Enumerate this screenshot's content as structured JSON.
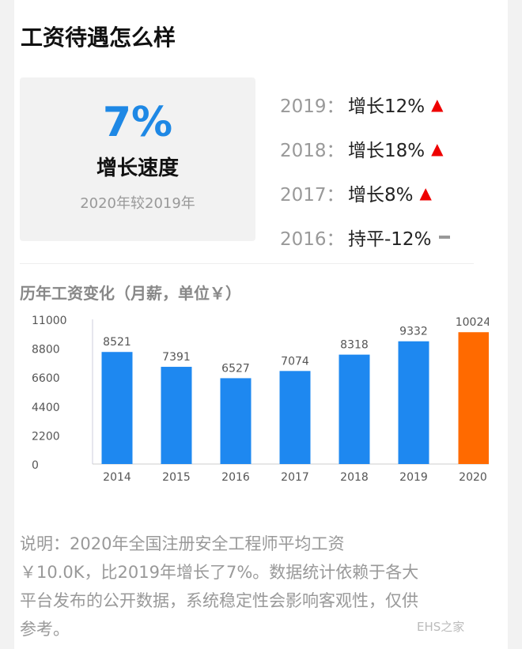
{
  "title": "工资待遇怎么样",
  "summary": {
    "value": "7%",
    "label": "增长速度",
    "compare": "2020年较2019年"
  },
  "history": [
    {
      "year": "2019：",
      "text": "增长12%",
      "trend": "up"
    },
    {
      "year": "2018：",
      "text": "增长18%",
      "trend": "up"
    },
    {
      "year": "2017：",
      "text": "增长8%",
      "trend": "up"
    },
    {
      "year": "2016：",
      "text": "持平-12%",
      "trend": "flat"
    }
  ],
  "chart_title": "历年工资变化（月薪，单位￥）",
  "chart_data": {
    "type": "bar",
    "categories": [
      "2014",
      "2015",
      "2016",
      "2017",
      "2018",
      "2019",
      "2020"
    ],
    "values": [
      8521,
      7391,
      6527,
      7074,
      8318,
      9332,
      10024
    ],
    "yticks": [
      0,
      2200,
      4400,
      6600,
      8800,
      11000
    ],
    "ylim": [
      0,
      11000
    ],
    "colors": {
      "default": "#1e88f0",
      "highlight": "#ff6a00"
    },
    "highlight": "2020"
  },
  "note_lines": [
    "说明：2020年全国注册安全工程师平均工资",
    "￥10.0K，比2019年增长了7%。数据统计依赖于各大",
    "平台发布的公开数据，系统稳定性会影响客观性，仅供",
    "参考。"
  ],
  "watermark": "EHS之家"
}
